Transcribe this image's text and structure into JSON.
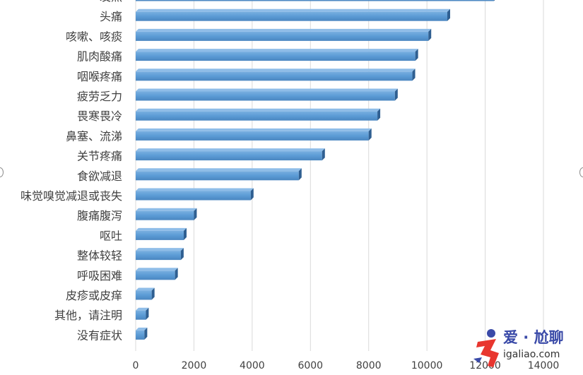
{
  "chart_data": {
    "type": "bar",
    "orientation": "horizontal",
    "categories": [
      "发热",
      "头痛",
      "咳嗽、咳痰",
      "肌肉酸痛",
      "咽喉疼痛",
      "疲劳乏力",
      "畏寒畏冷",
      "鼻塞、流涕",
      "关节疼痛",
      "食欲减退",
      "味觉嗅觉减退或丧失",
      "腹痛腹泻",
      "呕吐",
      "整体较轻",
      "呼吸困难",
      "皮疹或皮痒",
      "其他，请注明",
      "没有症状"
    ],
    "values": [
      12300,
      10700,
      10050,
      9600,
      9500,
      8900,
      8300,
      8000,
      6400,
      5600,
      3950,
      2000,
      1650,
      1550,
      1350,
      550,
      350,
      300
    ],
    "xlim": [
      0,
      14000
    ],
    "xticks": [
      0,
      2000,
      4000,
      6000,
      8000,
      10000,
      12000,
      14000
    ],
    "grid": true,
    "bar_color": "#5b9bd5"
  },
  "watermark": {
    "title": "爱 · 尬聊",
    "url": "igaliao.com"
  }
}
